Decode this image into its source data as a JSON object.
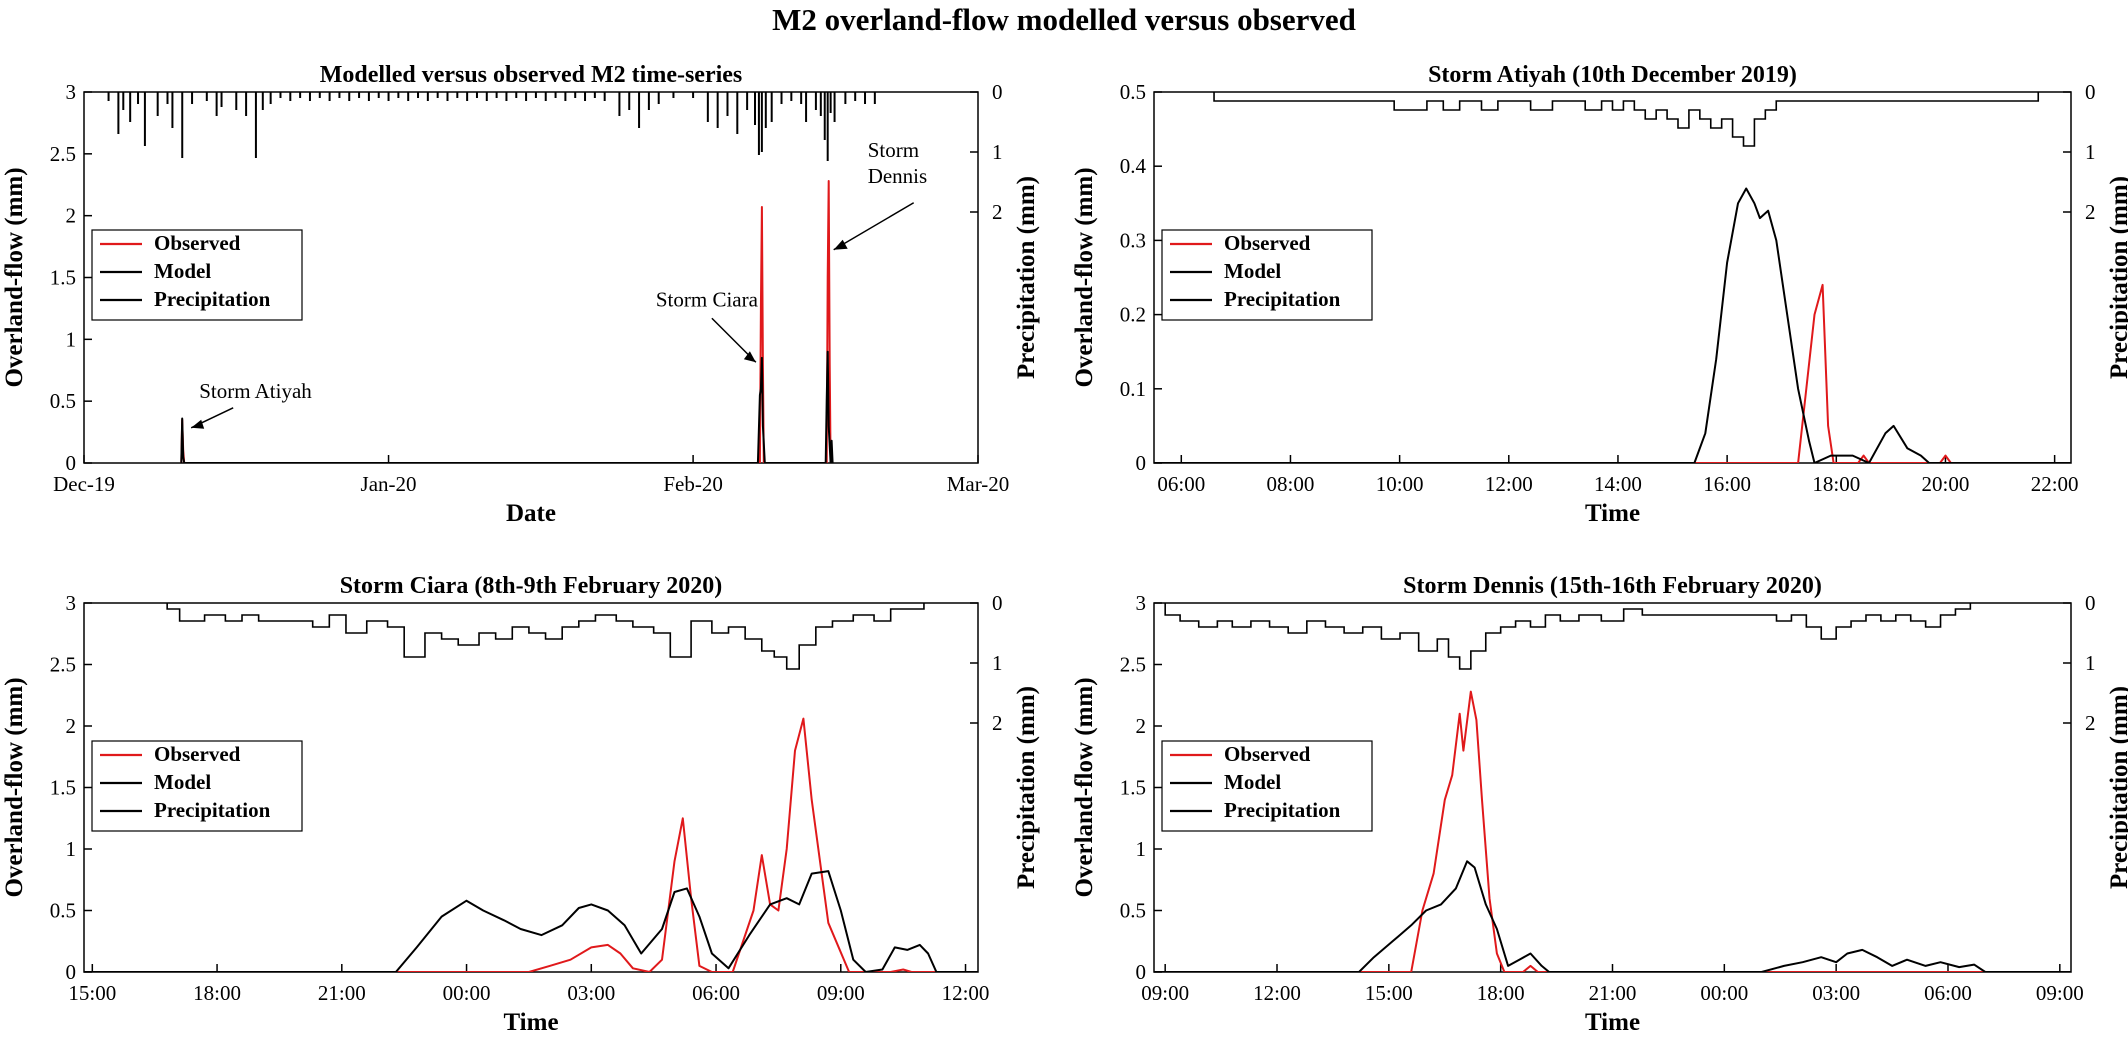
{
  "suptitle": "M2 overland-flow modelled versus observed",
  "colors": {
    "observed": "#e0191b",
    "model": "#000000",
    "precipitation": "#000000",
    "axes": "#000000"
  },
  "legend": {
    "placement": "left",
    "entries": [
      "Observed",
      "Model",
      "Precipitation"
    ]
  },
  "chart_data": [
    {
      "type": "line",
      "title": "Modelled versus observed M2 time-series",
      "xlabel": "Date",
      "ylabel": "Overland-flow (mm)",
      "ylabel_right": "Precipitation (mm)",
      "x_ticks": [
        "Dec-19",
        "Jan-20",
        "Feb-20",
        "Mar-20"
      ],
      "ylim": [
        0,
        3
      ],
      "y_ticks": [
        "0",
        "0.5",
        "1",
        "1.5",
        "2",
        "2.5",
        "3"
      ],
      "y2_ticks": [
        "0",
        "1",
        "2"
      ],
      "xlim_days": [
        0,
        91
      ],
      "annotations": [
        {
          "text": "Storm Atiyah",
          "at_day": 10.3,
          "at_value": 0.22
        },
        {
          "text": "Storm Ciara",
          "at_day": 69.0,
          "at_value": 0.75
        },
        {
          "text": "Storm Dennis",
          "at_day": 75.7,
          "at_value": 1.7
        }
      ],
      "series": [
        {
          "name": "Observed",
          "x": [
            9.9,
            10.0,
            10.1,
            10.2,
            68.8,
            68.9,
            69.0,
            69.1,
            69.2,
            75.6,
            75.7,
            75.8,
            75.9,
            76.0
          ],
          "y": [
            0,
            0.35,
            0.1,
            0,
            0,
            1.25,
            2.07,
            0.8,
            0,
            0,
            1.5,
            2.28,
            0.8,
            0
          ]
        },
        {
          "name": "Model",
          "x": [
            9.9,
            10.0,
            10.1,
            10.2,
            68.6,
            68.8,
            68.9,
            69.0,
            69.1,
            69.3,
            75.5,
            75.6,
            75.7,
            75.8,
            76.0,
            76.1,
            76.2
          ],
          "y": [
            0,
            0.36,
            0.05,
            0,
            0,
            0.55,
            0.6,
            0.85,
            0.3,
            0,
            0,
            0.5,
            0.9,
            0.3,
            0,
            0.18,
            0
          ]
        },
        {
          "name": "Precipitation",
          "x": [
            2.5,
            3.5,
            4.0,
            4.7,
            5.5,
            6.2,
            7.5,
            8.5,
            9.0,
            10.0,
            11.0,
            12.5,
            13.5,
            14.0,
            15.5,
            16.5,
            17.5,
            18.2,
            19.0,
            20.0,
            21.0,
            22.0,
            23.0,
            24.0,
            25.0,
            26.0,
            27.0,
            28.0,
            29.0,
            30.0,
            31.0,
            32.0,
            33.0,
            34.0,
            35.0,
            36.0,
            37.0,
            38.0,
            39.0,
            40.0,
            41.0,
            42.0,
            43.0,
            44.0,
            45.0,
            46.0,
            47.0,
            48.0,
            49.0,
            50.0,
            51.0,
            52.0,
            53.0,
            54.5,
            55.5,
            56.5,
            57.5,
            58.5,
            60.0,
            62.0,
            63.5,
            64.5,
            65.5,
            66.5,
            67.5,
            68.3,
            68.7,
            69.0,
            69.4,
            70.0,
            71.0,
            72.0,
            73.0,
            73.5,
            74.5,
            75.0,
            75.4,
            75.7,
            76.0,
            76.4,
            77.5,
            78.5,
            79.5,
            80.5
          ],
          "y": [
            0.15,
            0.7,
            0.3,
            0.5,
            0.2,
            0.9,
            0.4,
            0.2,
            0.6,
            1.1,
            0.2,
            0.15,
            0.4,
            0.25,
            0.3,
            0.4,
            1.1,
            0.3,
            0.2,
            0.1,
            0.15,
            0.1,
            0.15,
            0.1,
            0.15,
            0.1,
            0.15,
            0.1,
            0.15,
            0.1,
            0.15,
            0.1,
            0.15,
            0.1,
            0.15,
            0.1,
            0.15,
            0.1,
            0.15,
            0.1,
            0.15,
            0.1,
            0.15,
            0.1,
            0.15,
            0.1,
            0.15,
            0.1,
            0.15,
            0.1,
            0.15,
            0.1,
            0.15,
            0.4,
            0.3,
            0.6,
            0.3,
            0.2,
            0.1,
            0.1,
            0.5,
            0.6,
            0.4,
            0.7,
            0.3,
            0.55,
            1.05,
            1.0,
            0.6,
            0.5,
            0.2,
            0.15,
            0.2,
            0.5,
            0.3,
            0.4,
            0.8,
            1.15,
            0.35,
            0.5,
            0.2,
            0.15,
            0.2,
            0.2
          ]
        }
      ]
    },
    {
      "type": "line",
      "title": "Storm Atiyah (10th December 2019)",
      "xlabel": "Time",
      "ylabel": "Overland-flow (mm)",
      "ylabel_right": "Precipitation (mm)",
      "x_ticks": [
        "06:00",
        "08:00",
        "10:00",
        "12:00",
        "14:00",
        "16:00",
        "18:00",
        "20:00",
        "22:00"
      ],
      "x_tick_hours": [
        6,
        8,
        10,
        12,
        14,
        16,
        18,
        20,
        22
      ],
      "xlim_hours": [
        5.5,
        22.3
      ],
      "ylim": [
        0,
        0.5
      ],
      "y_ticks": [
        "0",
        "0.1",
        "0.2",
        "0.3",
        "0.4",
        "0.5"
      ],
      "y2_ticks": [
        "0",
        "1",
        "2"
      ],
      "series": [
        {
          "name": "Observed",
          "x": [
            5.5,
            17.3,
            17.45,
            17.6,
            17.75,
            17.85,
            17.95,
            18.1,
            18.4,
            18.5,
            18.6,
            19.9,
            20.0,
            20.1,
            22.3
          ],
          "y": [
            0,
            0,
            0.1,
            0.2,
            0.24,
            0.05,
            0,
            0,
            0,
            0.01,
            0,
            0,
            0.01,
            0,
            0
          ]
        },
        {
          "name": "Model",
          "x": [
            5.5,
            15.4,
            15.6,
            15.8,
            16.0,
            16.2,
            16.35,
            16.5,
            16.6,
            16.75,
            16.9,
            17.1,
            17.3,
            17.5,
            17.6,
            17.9,
            18.3,
            18.6,
            18.9,
            19.05,
            19.3,
            19.55,
            19.7,
            22.3
          ],
          "y": [
            0,
            0,
            0.04,
            0.14,
            0.27,
            0.35,
            0.37,
            0.35,
            0.33,
            0.34,
            0.3,
            0.2,
            0.1,
            0.03,
            0,
            0.01,
            0.01,
            0,
            0.04,
            0.05,
            0.02,
            0.01,
            0,
            0
          ]
        },
        {
          "name": "Precipitation",
          "x": [
            6.6,
            6.8,
            7.3,
            7.6,
            8.1,
            8.4,
            8.9,
            9.1,
            9.5,
            9.7,
            9.9,
            10.2,
            10.5,
            10.8,
            11.1,
            11.5,
            11.8,
            12.1,
            12.4,
            12.8,
            13.1,
            13.4,
            13.7,
            13.9,
            14.1,
            14.3,
            14.5,
            14.7,
            14.9,
            15.1,
            15.3,
            15.5,
            15.7,
            15.9,
            16.1,
            16.3,
            16.5,
            16.7,
            16.9,
            17.2,
            17.5,
            17.9,
            18.3,
            18.7,
            19.2,
            19.6,
            20.1,
            20.9,
            21.5
          ],
          "y": [
            0.15,
            0.15,
            0.15,
            0.15,
            0.15,
            0.15,
            0.15,
            0.15,
            0.15,
            0.15,
            0.3,
            0.3,
            0.15,
            0.3,
            0.15,
            0.3,
            0.15,
            0.15,
            0.3,
            0.15,
            0.15,
            0.3,
            0.15,
            0.3,
            0.15,
            0.3,
            0.45,
            0.3,
            0.45,
            0.6,
            0.3,
            0.45,
            0.6,
            0.45,
            0.75,
            0.9,
            0.45,
            0.3,
            0.15,
            0.15,
            0.15,
            0.15,
            0.15,
            0.15,
            0.15,
            0.15,
            0.15,
            0.15,
            0.15
          ]
        }
      ]
    },
    {
      "type": "line",
      "title": "Storm Ciara (8th-9th February 2020)",
      "xlabel": "Time",
      "ylabel": "Overland-flow (mm)",
      "ylabel_right": "Precipitation (mm)",
      "x_ticks": [
        "15:00",
        "18:00",
        "21:00",
        "00:00",
        "03:00",
        "06:00",
        "09:00",
        "12:00"
      ],
      "x_tick_hours": [
        15,
        18,
        21,
        24,
        27,
        30,
        33,
        36
      ],
      "xlim_hours": [
        14.8,
        36.3
      ],
      "ylim": [
        0,
        3
      ],
      "y_ticks": [
        "0",
        "0.5",
        "1",
        "1.5",
        "2",
        "2.5",
        "3"
      ],
      "y2_ticks": [
        "0",
        "1",
        "2"
      ],
      "series": [
        {
          "name": "Observed",
          "x": [
            14.8,
            25.5,
            26.0,
            26.5,
            27.0,
            27.4,
            27.7,
            28.0,
            28.4,
            28.7,
            29.0,
            29.2,
            29.4,
            29.6,
            29.9,
            30.4,
            30.9,
            31.1,
            31.3,
            31.5,
            31.7,
            31.9,
            32.1,
            32.3,
            32.7,
            33.2,
            34.2,
            34.5,
            34.7,
            36.3
          ],
          "y": [
            0,
            0,
            0.05,
            0.1,
            0.2,
            0.22,
            0.15,
            0.03,
            0,
            0.1,
            0.9,
            1.25,
            0.6,
            0.05,
            0,
            0,
            0.5,
            0.95,
            0.55,
            0.5,
            1.0,
            1.8,
            2.06,
            1.4,
            0.4,
            0,
            0,
            0.02,
            0,
            0
          ]
        },
        {
          "name": "Model",
          "x": [
            14.8,
            22.3,
            22.8,
            23.4,
            24.0,
            24.4,
            24.9,
            25.3,
            25.8,
            26.3,
            26.7,
            27.0,
            27.4,
            27.8,
            28.2,
            28.7,
            29.0,
            29.3,
            29.6,
            29.9,
            30.3,
            30.8,
            31.3,
            31.7,
            32.0,
            32.3,
            32.7,
            33.0,
            33.3,
            33.6,
            34.0,
            34.3,
            34.6,
            34.9,
            35.1,
            35.3,
            36.3
          ],
          "y": [
            0,
            0,
            0.2,
            0.45,
            0.58,
            0.5,
            0.42,
            0.35,
            0.3,
            0.38,
            0.52,
            0.55,
            0.5,
            0.38,
            0.15,
            0.35,
            0.65,
            0.68,
            0.45,
            0.15,
            0.03,
            0.3,
            0.55,
            0.6,
            0.55,
            0.8,
            0.82,
            0.5,
            0.1,
            0,
            0.02,
            0.2,
            0.18,
            0.22,
            0.15,
            0,
            0
          ]
        },
        {
          "name": "Precipitation",
          "x": [
            16.8,
            17.1,
            17.7,
            18.2,
            18.6,
            19.0,
            19.6,
            20.3,
            20.7,
            21.1,
            21.6,
            22.1,
            22.5,
            23.0,
            23.4,
            23.8,
            24.3,
            24.7,
            25.1,
            25.5,
            25.9,
            26.3,
            26.7,
            27.1,
            27.6,
            28.0,
            28.5,
            28.9,
            29.4,
            29.9,
            30.3,
            30.7,
            31.1,
            31.4,
            31.7,
            32.0,
            32.4,
            32.8,
            33.3,
            33.8,
            34.2,
            34.7
          ],
          "y": [
            0.1,
            0.3,
            0.2,
            0.3,
            0.2,
            0.3,
            0.3,
            0.4,
            0.2,
            0.5,
            0.3,
            0.4,
            0.9,
            0.5,
            0.6,
            0.7,
            0.5,
            0.6,
            0.4,
            0.5,
            0.6,
            0.4,
            0.3,
            0.2,
            0.3,
            0.4,
            0.5,
            0.9,
            0.3,
            0.5,
            0.4,
            0.6,
            0.8,
            0.9,
            1.1,
            0.7,
            0.4,
            0.3,
            0.2,
            0.3,
            0.1,
            0.1
          ]
        }
      ]
    },
    {
      "type": "line",
      "title": "Storm Dennis (15th-16th February 2020)",
      "xlabel": "Time",
      "ylabel": "Overland-flow (mm)",
      "ylabel_right": "Precipitation (mm)",
      "x_ticks": [
        "09:00",
        "12:00",
        "15:00",
        "18:00",
        "21:00",
        "00:00",
        "03:00",
        "06:00",
        "09:00"
      ],
      "x_tick_hours": [
        9,
        12,
        15,
        18,
        21,
        24,
        27,
        30,
        33
      ],
      "xlim_hours": [
        8.7,
        33.3
      ],
      "ylim": [
        0,
        3
      ],
      "y_ticks": [
        "0",
        "0.5",
        "1",
        "1.5",
        "2",
        "2.5",
        "3"
      ],
      "y2_ticks": [
        "0",
        "1",
        "2"
      ],
      "series": [
        {
          "name": "Observed",
          "x": [
            8.7,
            15.6,
            15.9,
            16.2,
            16.5,
            16.7,
            16.9,
            17.0,
            17.2,
            17.35,
            17.5,
            17.7,
            17.9,
            18.1,
            18.6,
            18.8,
            19.0,
            33.3
          ],
          "y": [
            0,
            0,
            0.5,
            0.8,
            1.4,
            1.6,
            2.1,
            1.8,
            2.28,
            2.05,
            1.4,
            0.6,
            0.15,
            0,
            0,
            0.05,
            0,
            0
          ]
        },
        {
          "name": "Model",
          "x": [
            8.7,
            14.2,
            14.6,
            15.1,
            15.6,
            16.0,
            16.4,
            16.8,
            17.1,
            17.3,
            17.6,
            17.9,
            18.2,
            18.5,
            18.8,
            19.1,
            19.3,
            25.0,
            25.6,
            26.1,
            26.6,
            27.0,
            27.3,
            27.7,
            28.1,
            28.5,
            28.9,
            29.4,
            29.8,
            30.3,
            30.7,
            31.0,
            33.3
          ],
          "y": [
            0,
            0,
            0.12,
            0.25,
            0.38,
            0.5,
            0.55,
            0.68,
            0.9,
            0.85,
            0.55,
            0.35,
            0.05,
            0.1,
            0.15,
            0.05,
            0,
            0,
            0.05,
            0.08,
            0.12,
            0.08,
            0.15,
            0.18,
            0.12,
            0.05,
            0.1,
            0.05,
            0.08,
            0.04,
            0.06,
            0,
            0
          ]
        },
        {
          "name": "Precipitation",
          "x": [
            9.0,
            9.4,
            9.9,
            10.4,
            10.8,
            11.3,
            11.8,
            12.3,
            12.8,
            13.3,
            13.8,
            14.3,
            14.8,
            15.3,
            15.8,
            16.3,
            16.6,
            16.9,
            17.2,
            17.6,
            18.0,
            18.4,
            18.8,
            19.2,
            19.6,
            20.1,
            20.7,
            21.3,
            21.8,
            24.9,
            25.4,
            25.8,
            26.2,
            26.6,
            27.0,
            27.4,
            27.8,
            28.2,
            28.6,
            29.0,
            29.4,
            29.8,
            30.2
          ],
          "y": [
            0.2,
            0.3,
            0.4,
            0.3,
            0.4,
            0.3,
            0.4,
            0.5,
            0.3,
            0.4,
            0.5,
            0.4,
            0.6,
            0.5,
            0.8,
            0.6,
            0.9,
            1.1,
            0.8,
            0.5,
            0.4,
            0.3,
            0.4,
            0.2,
            0.3,
            0.2,
            0.3,
            0.1,
            0.2,
            0.2,
            0.3,
            0.2,
            0.4,
            0.6,
            0.4,
            0.3,
            0.2,
            0.3,
            0.2,
            0.3,
            0.4,
            0.2,
            0.1
          ]
        }
      ]
    }
  ]
}
